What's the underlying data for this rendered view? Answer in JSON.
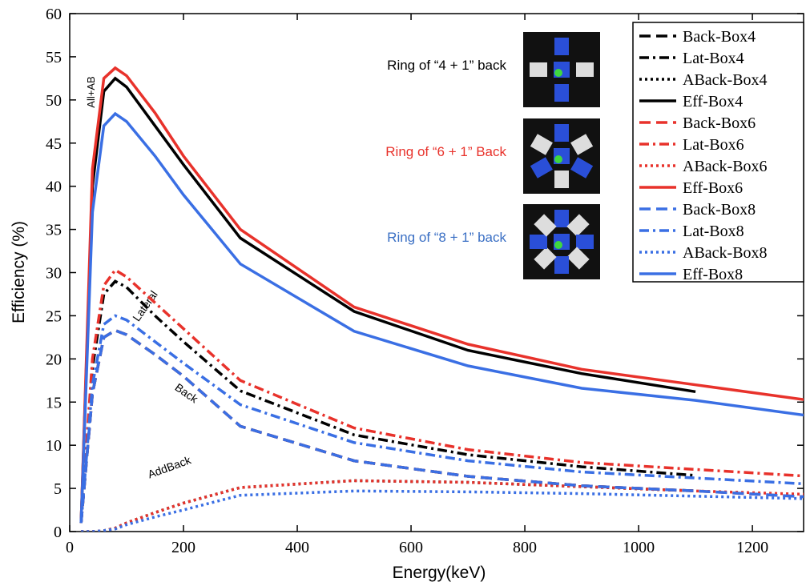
{
  "chart_data": {
    "type": "line",
    "xlabel": "Energy(keV)",
    "ylabel": "Efficiency (%)",
    "x": [
      20,
      40,
      60,
      80,
      100,
      150,
      200,
      300,
      500,
      700,
      900,
      1100,
      1300
    ],
    "xlim": [
      0,
      1290
    ],
    "xticks": [
      0,
      200,
      400,
      600,
      800,
      1000,
      1200
    ],
    "ylim": [
      0,
      60
    ],
    "yticks": [
      0,
      5,
      10,
      15,
      20,
      25,
      30,
      35,
      40,
      45,
      50,
      55,
      60
    ],
    "legend": "upper right",
    "annotations": [
      "All+AB",
      "Lateral",
      "Back",
      "AddBack"
    ],
    "insets": [
      {
        "label": "Ring of “4 + 1” back",
        "color": "#000000"
      },
      {
        "label": "Ring of “6 + 1” Back",
        "color": "#e8322b"
      },
      {
        "label": "Ring of “8 + 1” back",
        "color": "#3a6fc4"
      }
    ],
    "series": [
      {
        "name": "Back-Box4",
        "color": "#000000",
        "dash": "dash",
        "values": [
          1,
          16,
          22.5,
          23.3,
          22.8,
          20.5,
          18,
          12.2,
          8.2,
          6.4,
          5.3,
          4.7,
          null
        ]
      },
      {
        "name": "Lat-Box4",
        "color": "#000000",
        "dash": "dashdot",
        "values": [
          1,
          19,
          27.5,
          29,
          28.3,
          25,
          22,
          16.3,
          11.2,
          8.9,
          7.5,
          6.5,
          null
        ]
      },
      {
        "name": "ABack-Box4",
        "color": "#000000",
        "dash": "dot",
        "values": [
          0,
          0,
          0.1,
          0.4,
          1,
          2.2,
          3.3,
          5.1,
          5.9,
          5.7,
          5.2,
          4.7,
          null
        ]
      },
      {
        "name": "Eff-Box4",
        "color": "#000000",
        "dash": "solid",
        "values": [
          1,
          40,
          51,
          52.5,
          51.5,
          47,
          42.5,
          34,
          25.5,
          21,
          18.3,
          16.2,
          null
        ]
      },
      {
        "name": "Back-Box6",
        "color": "#e8322b",
        "dash": "dash",
        "values": [
          1,
          16,
          22.5,
          23.3,
          22.8,
          20.5,
          18,
          12.2,
          8.2,
          6.4,
          5.3,
          4.7,
          4
        ]
      },
      {
        "name": "Lat-Box6",
        "color": "#e8322b",
        "dash": "dashdot",
        "values": [
          1,
          20,
          28.5,
          30.3,
          29.5,
          26.5,
          23.5,
          17.5,
          12,
          9.5,
          8,
          7.2,
          6.4
        ]
      },
      {
        "name": "ABack-Box6",
        "color": "#e8322b",
        "dash": "dot",
        "values": [
          0,
          0,
          0.1,
          0.4,
          1,
          2.2,
          3.3,
          5.1,
          5.9,
          5.7,
          5.2,
          4.7,
          4.3
        ]
      },
      {
        "name": "Eff-Box6",
        "color": "#e8322b",
        "dash": "solid",
        "values": [
          1,
          42,
          52.5,
          53.7,
          52.8,
          48.5,
          43.5,
          35,
          26,
          21.7,
          18.8,
          17,
          15.2
        ]
      },
      {
        "name": "Back-Box8",
        "color": "#3a6fe4",
        "dash": "dash",
        "values": [
          1,
          16,
          22.5,
          23.3,
          22.8,
          20.5,
          18,
          12.2,
          8.2,
          6.4,
          5.3,
          4.7,
          4
        ]
      },
      {
        "name": "Lat-Box8",
        "color": "#3a6fe4",
        "dash": "dashdot",
        "values": [
          1,
          17,
          24,
          25,
          24.5,
          22,
          19.5,
          14.7,
          10.3,
          8.2,
          6.9,
          6.2,
          5.5
        ]
      },
      {
        "name": "ABack-Box8",
        "color": "#3a6fe4",
        "dash": "dot",
        "values": [
          0,
          0,
          0.1,
          0.3,
          0.8,
          1.7,
          2.5,
          4.2,
          4.7,
          4.6,
          4.4,
          4.1,
          3.8
        ]
      },
      {
        "name": "Eff-Box8",
        "color": "#3a6fe4",
        "dash": "solid",
        "values": [
          1,
          37,
          47,
          48.4,
          47.5,
          43.5,
          39,
          31,
          23.2,
          19.2,
          16.6,
          15.2,
          13.4
        ]
      }
    ]
  }
}
